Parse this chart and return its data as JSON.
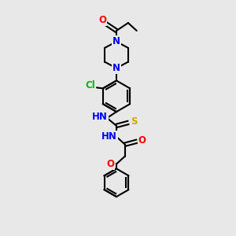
{
  "bg_color": "#e8e8e8",
  "bond_color": "#000000",
  "atom_colors": {
    "O": "#ff0000",
    "N": "#0000ff",
    "S": "#ccaa00",
    "Cl": "#00bb00",
    "C": "#000000",
    "H": "#000000"
  },
  "figsize": [
    3.0,
    3.0
  ],
  "dpi": 100
}
